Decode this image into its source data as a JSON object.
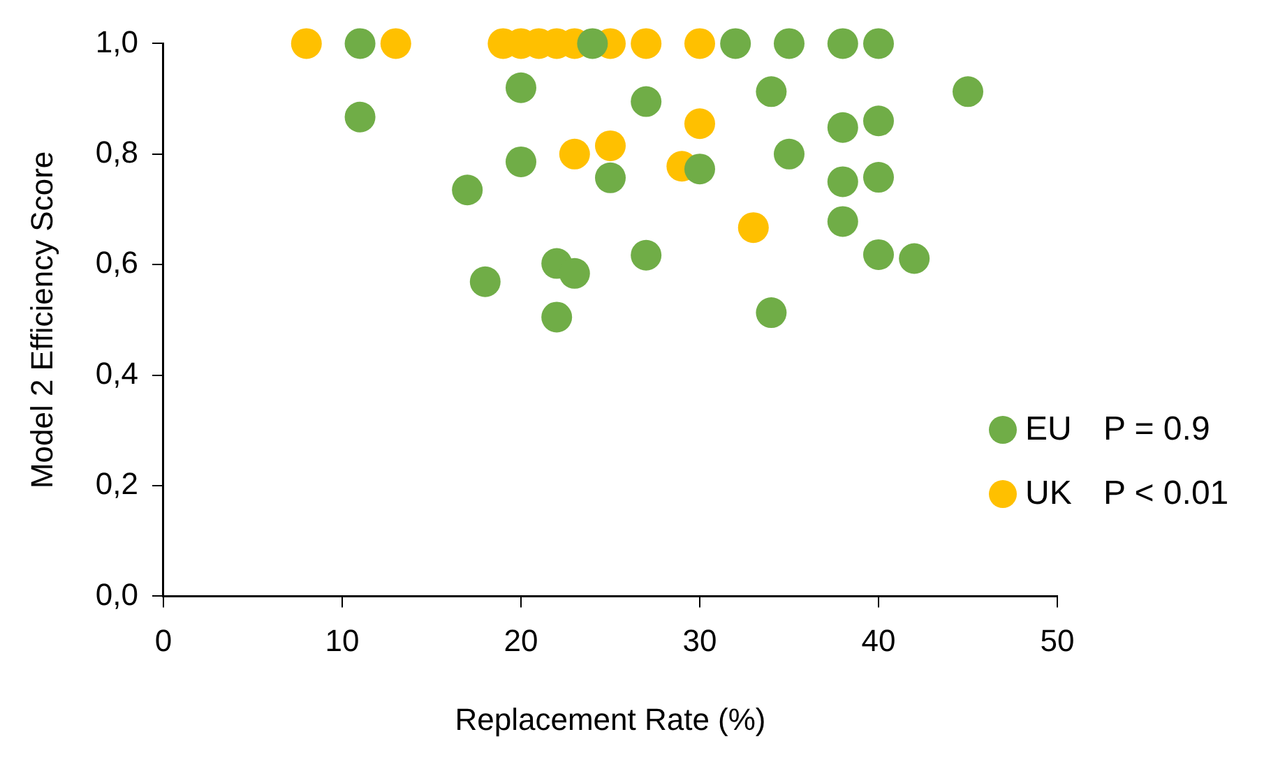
{
  "chart_data": {
    "type": "scatter",
    "xlabel": "Replacement Rate (%)",
    "ylabel": "Model 2 Efficiency Score",
    "xlim": [
      0,
      50
    ],
    "xticks": [
      0,
      10,
      20,
      30,
      40,
      50
    ],
    "ylim": [
      0,
      1
    ],
    "yticks": [
      {
        "value": 0,
        "label": "0,0"
      },
      {
        "value": 0.2,
        "label": "0,2"
      },
      {
        "value": 0.4,
        "label": "0,4"
      },
      {
        "value": 0.6,
        "label": "0,6"
      },
      {
        "value": 0.8,
        "label": "0,8"
      },
      {
        "value": 1,
        "label": "1,0"
      }
    ],
    "grid": false,
    "legend": "bottom right",
    "marker": "circle",
    "annotations": [
      "P = 0.9",
      "P < 0.01"
    ],
    "series": [
      {
        "name": "EU",
        "color": "#70ad47",
        "x": [
          11,
          24,
          32,
          35,
          38,
          40,
          11,
          20,
          34,
          45,
          27,
          38,
          40,
          35,
          20,
          30,
          25,
          38,
          40,
          17,
          38,
          27,
          40,
          42,
          22,
          23,
          18,
          34,
          22
        ],
        "values": [
          1,
          1,
          1,
          1,
          1,
          1,
          0.867,
          0.92,
          0.913,
          0.913,
          0.895,
          0.848,
          0.86,
          0.8,
          0.786,
          0.773,
          0.757,
          0.75,
          0.758,
          0.735,
          0.678,
          0.617,
          0.618,
          0.611,
          0.602,
          0.584,
          0.569,
          0.513,
          0.505
        ]
      },
      {
        "name": "UK",
        "color": "#ffc000",
        "x": [
          8,
          13,
          19,
          20,
          21,
          22,
          23,
          25,
          27,
          30,
          23,
          25,
          30,
          29,
          33
        ],
        "values": [
          1,
          1,
          1,
          1,
          1,
          1,
          1,
          1,
          1,
          1,
          0.8,
          0.815,
          0.855,
          0.778,
          0.667
        ]
      }
    ]
  }
}
